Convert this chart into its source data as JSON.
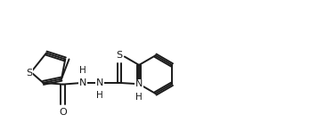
{
  "bg": "#ffffff",
  "lc": "#1a1a1a",
  "lw": 1.4,
  "fs": 8.0,
  "xlim": [
    -0.05,
    1.85
  ],
  "ylim": [
    0.1,
    0.9
  ]
}
